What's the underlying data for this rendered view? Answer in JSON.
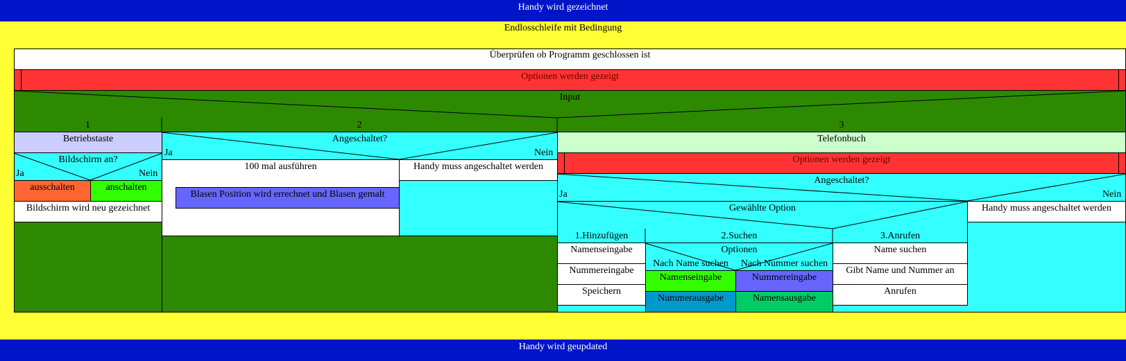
{
  "top_bar": "Handy wird gezeichnet",
  "loop_title": "Endlosschleife mit Bedingung",
  "check_closed": "Überprüfen ob Programm geschlossen ist",
  "options_shown": "Optionen werden gezeigt",
  "input": "Input",
  "case_labels": [
    "1",
    "2",
    "3"
  ],
  "case1": {
    "title": "Betriebstaste",
    "condition": "Bildschirm an?",
    "yes": "Ja",
    "no": "Nein",
    "yes_action": "ausschalten",
    "no_action": "anschalten",
    "after": "Bildschirm wird neu gezeichnet"
  },
  "case2": {
    "condition": "Angeschaltet?",
    "yes": "Ja",
    "no": "Nein",
    "loop": "100 mal ausführen",
    "loop_body": "Blasen Position wird errechnet und Blasen gemalt",
    "no_action": "Handy muss angeschaltet werden"
  },
  "case3": {
    "title": "Telefonbuch",
    "options_shown": "Optionen werden gezeigt",
    "condition": "Angeschaltet?",
    "yes": "Ja",
    "no": "Nein",
    "no_action": "Handy muss angeschaltet werden",
    "chosen_option": "Gewählte Option",
    "options": [
      "1.Hinzufügen",
      "2.Suchen",
      "3.Anrufen"
    ],
    "add_steps": [
      "Namenseingabe",
      "Nummereingabe",
      "Speichern"
    ],
    "search": {
      "title": "Optionen",
      "left_label": "Nach Name suchen",
      "right_label": "Nach Nummer suchen",
      "left_steps": [
        "Namenseingabe",
        "Nummerausgabe"
      ],
      "right_steps": [
        "Nummereingabe",
        "Namensausgabe"
      ]
    },
    "call_steps": [
      "Name suchen",
      "Gibt Name und Nummer an",
      "Anrufen"
    ]
  },
  "bottom_bar": "Handy wird geupdated",
  "colors": {
    "blue_bar": "#0014c8",
    "yellow": "#ffff33",
    "red": "#ff3333",
    "green": "#2d8a00",
    "cyan": "#33ffff",
    "lavender": "#ccccff",
    "light_green": "#ccffcc",
    "orange": "#ff6633",
    "lime": "#33ff00",
    "periwinkle": "#6666ff",
    "steel_blue": "#0099cc",
    "emerald": "#00cc66"
  }
}
